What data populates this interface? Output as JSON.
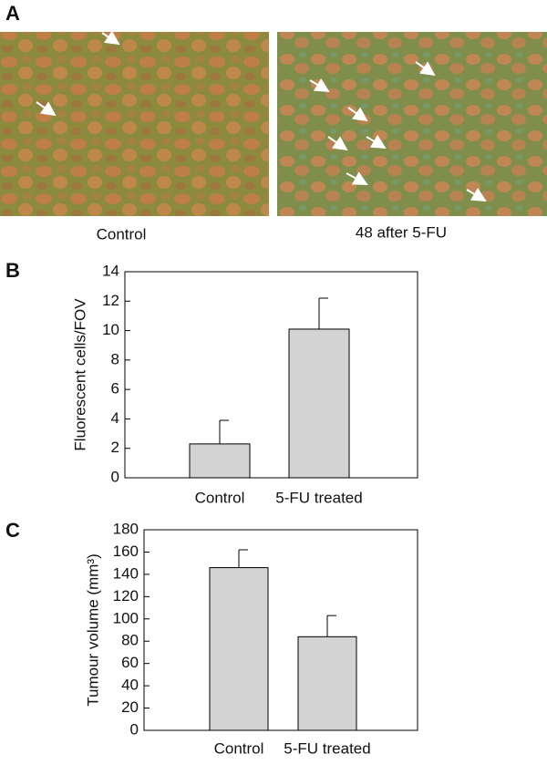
{
  "panel_labels": [
    "A",
    "B",
    "C"
  ],
  "images": {
    "captions": [
      "Control",
      "48 after 5-FU"
    ]
  },
  "chart_data": [
    {
      "type": "bar",
      "ylabel": "Fluorescent cells/FOV",
      "categories": [
        "Control",
        "5-FU treated"
      ],
      "values": [
        2.3,
        10.1
      ],
      "errors": [
        1.6,
        2.1
      ],
      "color": "#d3d3d3",
      "ylim": [
        0,
        14
      ],
      "yticks": [
        0,
        2,
        4,
        6,
        8,
        10,
        12,
        14
      ]
    },
    {
      "type": "bar",
      "ylabel": "Tumour volume (mm³)",
      "categories": [
        "Control",
        "5-FU treated"
      ],
      "values": [
        146,
        84
      ],
      "errors": [
        16,
        19
      ],
      "color": "#d3d3d3",
      "ylim": [
        0,
        180
      ],
      "yticks": [
        0,
        20,
        40,
        60,
        80,
        100,
        120,
        140,
        160,
        180
      ]
    }
  ]
}
